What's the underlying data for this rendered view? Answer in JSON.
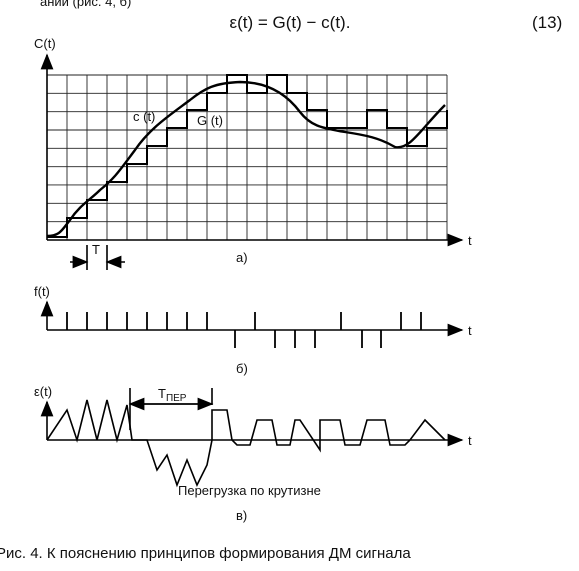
{
  "header": {
    "fragment": "ании (рис. 4, б)",
    "equation": "ε(t) = G(t) − c(t).",
    "equation_number": "(13)"
  },
  "panel_a": {
    "y_label": "C(t)",
    "x_label": "t",
    "curve_label": "c (t)",
    "stair_label": "G (t)",
    "period_label": "T",
    "caption": "а)"
  },
  "panel_b": {
    "y_label": "f(t)",
    "x_label": "t",
    "caption": "б)"
  },
  "panel_c": {
    "y_label": "ε(t)",
    "x_label": "t",
    "period_label": "T",
    "period_subscript": "ПЕР",
    "annotation": "Перегрузка по крутизне",
    "caption": "в)"
  },
  "caption": "Рис. 4. К пояснению принципов формирования ДМ сигнала"
}
